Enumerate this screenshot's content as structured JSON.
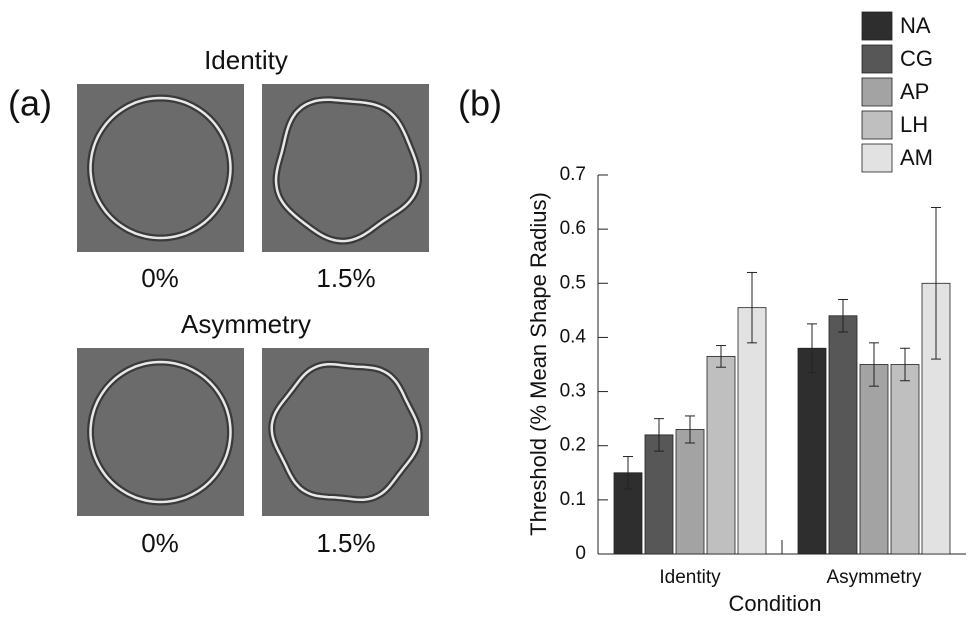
{
  "panel_a": {
    "label": "(a)",
    "rows": [
      {
        "title": "Identity",
        "captions": [
          "0%",
          "1.5%"
        ]
      },
      {
        "title": "Asymmetry",
        "captions": [
          "0%",
          "1.5%"
        ]
      }
    ]
  },
  "chart_data": {
    "type": "bar",
    "panel_label": "(b)",
    "xlabel": "Condition",
    "ylabel": "Threshold (% Mean Shape Radius)",
    "categories": [
      "Identity",
      "Asymmetry"
    ],
    "series": [
      {
        "name": "NA",
        "color": "#2e2e2e",
        "values": [
          0.15,
          0.38
        ],
        "errors": [
          0.03,
          0.045
        ]
      },
      {
        "name": "CG",
        "color": "#575757",
        "values": [
          0.22,
          0.44
        ],
        "errors": [
          0.03,
          0.03
        ]
      },
      {
        "name": "AP",
        "color": "#a3a3a3",
        "values": [
          0.23,
          0.35
        ],
        "errors": [
          0.025,
          0.04
        ]
      },
      {
        "name": "LH",
        "color": "#bfbfbf",
        "values": [
          0.365,
          0.35
        ],
        "errors": [
          0.02,
          0.03
        ]
      },
      {
        "name": "AM",
        "color": "#e2e2e2",
        "values": [
          0.455,
          0.5
        ],
        "errors": [
          0.065,
          0.14
        ]
      }
    ],
    "ylim": [
      0,
      0.7
    ],
    "yticks": [
      0,
      0.1,
      0.2,
      0.3,
      0.4,
      0.5,
      0.6,
      0.7
    ],
    "legend": "top-right"
  }
}
